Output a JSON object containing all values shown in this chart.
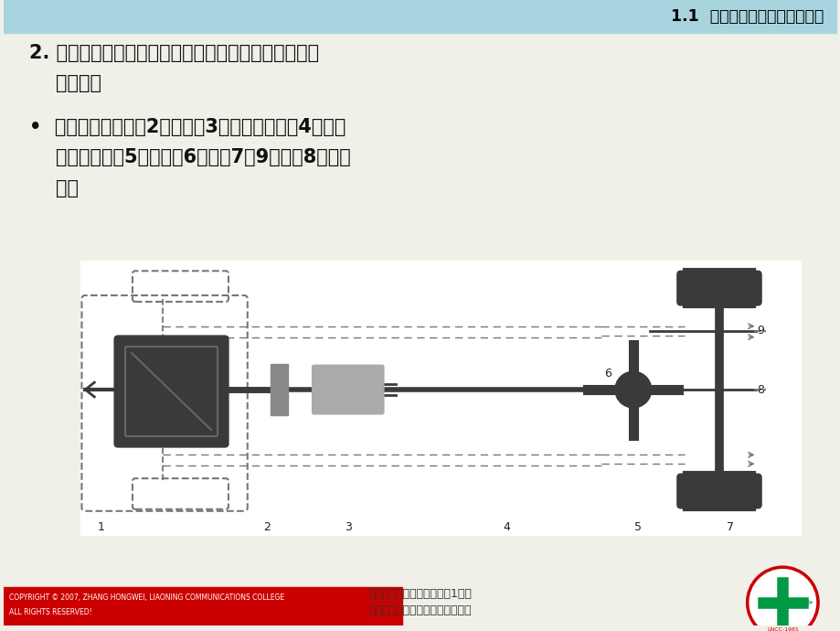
{
  "bg_color": "#f0efe8",
  "header_bg": "#a8d4e0",
  "header_text": "1.1  汽车底盘的基本组成和功用",
  "header_text_color": "#000000",
  "title_line1": "2. 传动系：从发动机到驱动车轮之间所有动力传递装置",
  "title_line2": "    的总称。",
  "bullet_line1": "•  组成：包括离合器2、变速器3、万向传动装置4、驱动",
  "bullet_line2": "    桥（主减速器5、差速器6、半轴7和9、桥壳8）等组",
  "bullet_line3": "    成。",
  "footer_center_line1": "汽车底盘电控系统检修项目1汽车",
  "footer_center_line2": "底盘概述及汽车维修基本知识课件",
  "footer_left_bg": "#cc0000",
  "footer_left_line1": "COPYRIGHT © 2007, ZHANG HONGWEI, LIAONING COMMUNICATIONS COLLEGE",
  "footer_left_line2": "ALL RIGHTS RESERVED!",
  "footer_left_text_color": "#ffffff",
  "main_text_color": "#111111",
  "diagram_bg": "#ffffff",
  "dark_part": "#3a3a3a",
  "gray_part": "#888888",
  "light_gray": "#aaaaaa",
  "dash_color": "#777777",
  "label_color": "#222222"
}
